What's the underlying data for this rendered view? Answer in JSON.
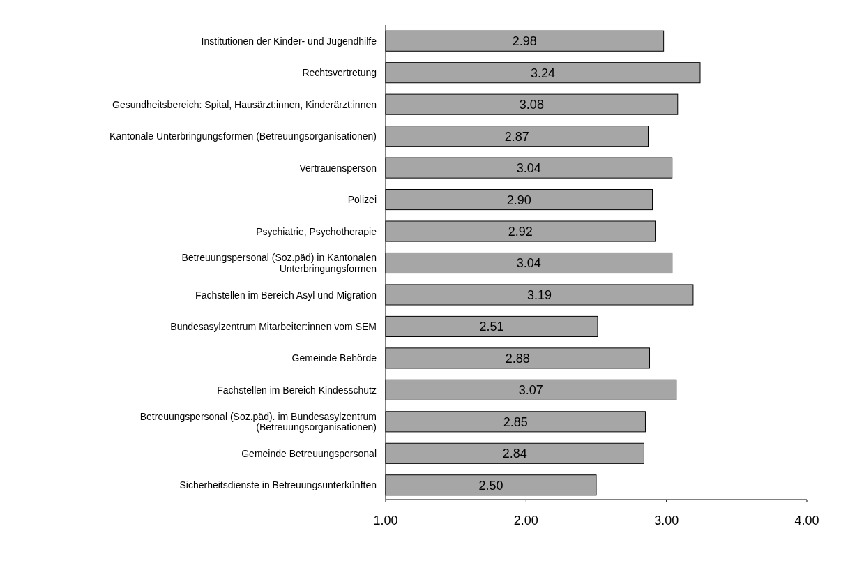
{
  "chart_data": {
    "type": "bar",
    "orientation": "horizontal",
    "categories": [
      "Institutionen der Kinder- und Jugendhilfe",
      "Rechtsvertretung",
      "Gesundheitsbereich: Spital, Hausärzt:innen, Kinderärzt:innen",
      "Kantonale Unterbringungsformen (Betreuungsorganisationen)",
      "Vertrauensperson",
      "Polizei",
      "Psychiatrie, Psychotherapie",
      "Betreuungspersonal (Soz.päd) in Kantonalen Unterbringungsformen",
      "Fachstellen im Bereich Asyl und Migration",
      "Bundesasylzentrum Mitarbeiter:innen vom SEM",
      "Gemeinde Behörde",
      "Fachstellen im Bereich Kindesschutz",
      "Betreuungspersonal (Soz.päd). im Bundesasylzentrum (Betreuungsorganisationen)",
      "Gemeinde Betreuungspersonal",
      "Sicherheitsdienste in Betreuungsunterkünften"
    ],
    "values": [
      2.98,
      3.24,
      3.08,
      2.87,
      3.04,
      2.9,
      2.92,
      3.04,
      3.19,
      2.51,
      2.88,
      3.07,
      2.85,
      2.84,
      2.5
    ],
    "value_labels": [
      "2.98",
      "3.24",
      "3.08",
      "2.87",
      "3.04",
      "2.90",
      "2.92",
      "3.04",
      "3.19",
      "2.51",
      "2.88",
      "3.07",
      "2.85",
      "2.84",
      "2.50"
    ],
    "color": "#a6a6a6",
    "xlim": [
      1,
      4
    ],
    "xticks": [
      {
        "value": 1,
        "label": "1.00"
      },
      {
        "value": 2,
        "label": "2.00"
      },
      {
        "value": 3,
        "label": "3.00"
      },
      {
        "value": 4,
        "label": "4.00"
      }
    ],
    "grid": false
  }
}
